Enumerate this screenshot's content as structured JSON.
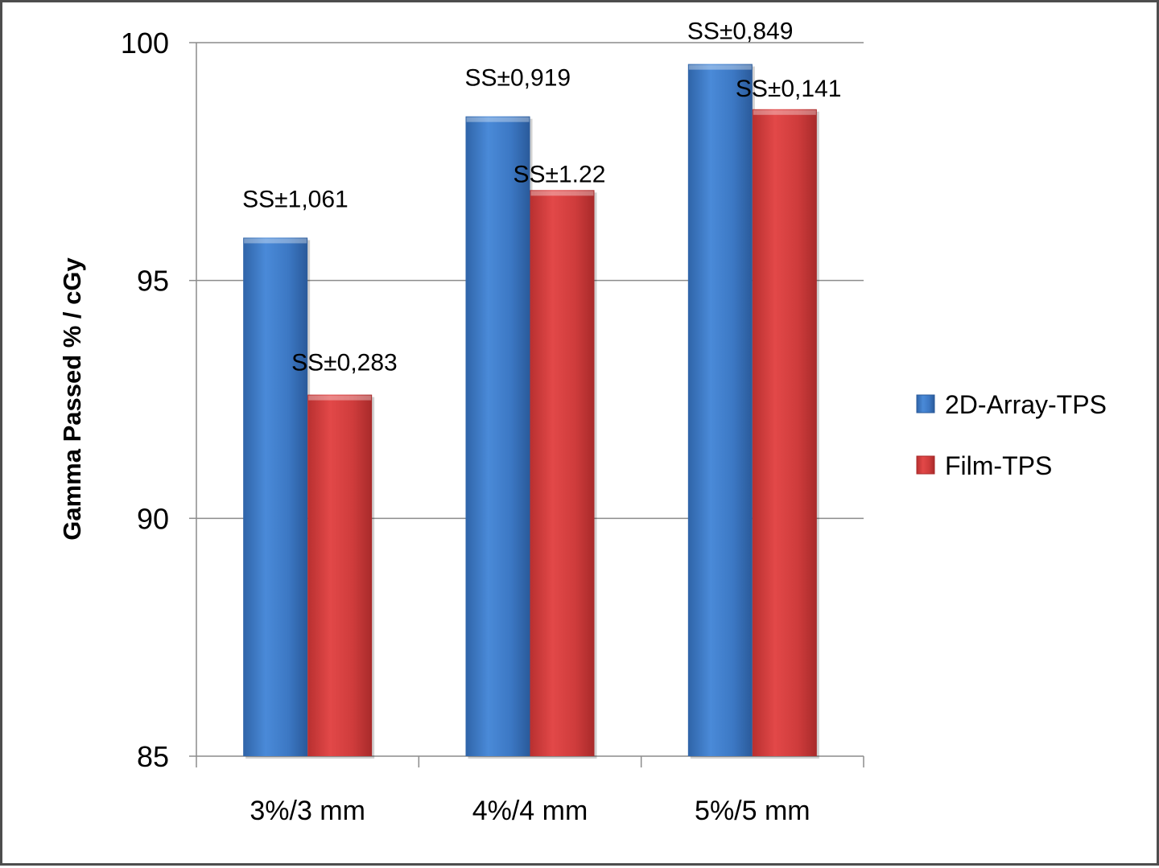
{
  "chart_data": {
    "type": "bar",
    "ylabel": "Gamma Passed % / cGy",
    "ylim": [
      85,
      100
    ],
    "yticks": [
      85,
      90,
      95,
      100
    ],
    "grid": true,
    "legend_position": "right",
    "categories": [
      "3%/3 mm",
      "4%/4 mm",
      "5%/5 mm"
    ],
    "series": [
      {
        "name": "2D-Array-TPS",
        "color": "#3c7ac8",
        "values": [
          95.9,
          98.45,
          99.55
        ],
        "labels": [
          "SS±1,061",
          "SS±0,919",
          "SS±0,849"
        ]
      },
      {
        "name": "Film-TPS",
        "color": "#d23c3c",
        "values": [
          92.6,
          96.9,
          98.6
        ],
        "labels": [
          "SS±0,283",
          "SS±1.22",
          "SS±0,141"
        ]
      }
    ]
  }
}
